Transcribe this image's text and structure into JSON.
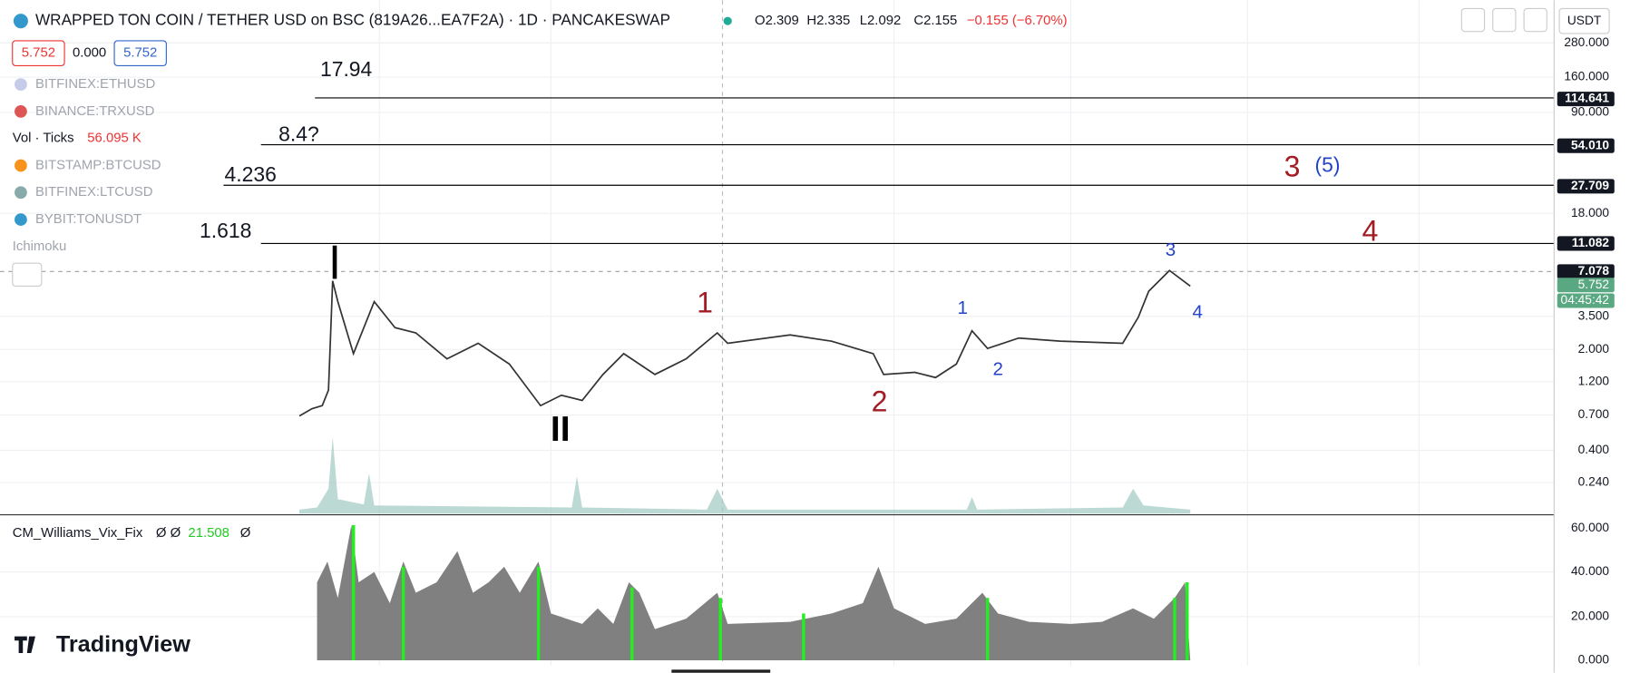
{
  "header": {
    "title": "WRAPPED TON COIN / TETHER USD on BSC (819A26...EA7F2A) · 1D · PANCAKESWAP",
    "open": "O2.309",
    "high": "H2.335",
    "low": "L2.092",
    "close": "C2.155",
    "change": "−0.155 (−6.70%)",
    "currency": "USDT"
  },
  "inputs": [
    "5.752",
    "0.000",
    "5.752"
  ],
  "indicators": [
    "BITFINEX:ETHUSD",
    "BINANCE:TRXUSD",
    "Vol · Ticks",
    "BITSTAMP:BTCUSD",
    "BITFINEX:LTCUSD",
    "BYBIT:TONUSDT",
    "Ichimoku"
  ],
  "volume_value": "56.095 K",
  "fib_labels": [
    "17.94",
    "8.4?",
    "4.236",
    "1.618"
  ],
  "wave_labels": {
    "black": [
      "I",
      "II"
    ],
    "red": [
      "1",
      "2",
      "3",
      "4"
    ],
    "blue": [
      "1",
      "2",
      "3",
      "4",
      "(5)"
    ]
  },
  "price_axis": [
    "280.000",
    "160.000",
    "114.641",
    "90.000",
    "54.010",
    "27.709",
    "18.000",
    "11.082",
    "7.078",
    "5.752",
    "04:45:42",
    "3.500",
    "2.000",
    "1.200",
    "0.700",
    "0.400",
    "0.240"
  ],
  "lower_pane": {
    "title": "CM_Williams_Vix_Fix",
    "params": "Ø Ø",
    "value": "21.508",
    "tail": "Ø",
    "axis": [
      "60.000",
      "40.000",
      "20.000",
      "0.000"
    ]
  },
  "brand": "TradingView"
}
